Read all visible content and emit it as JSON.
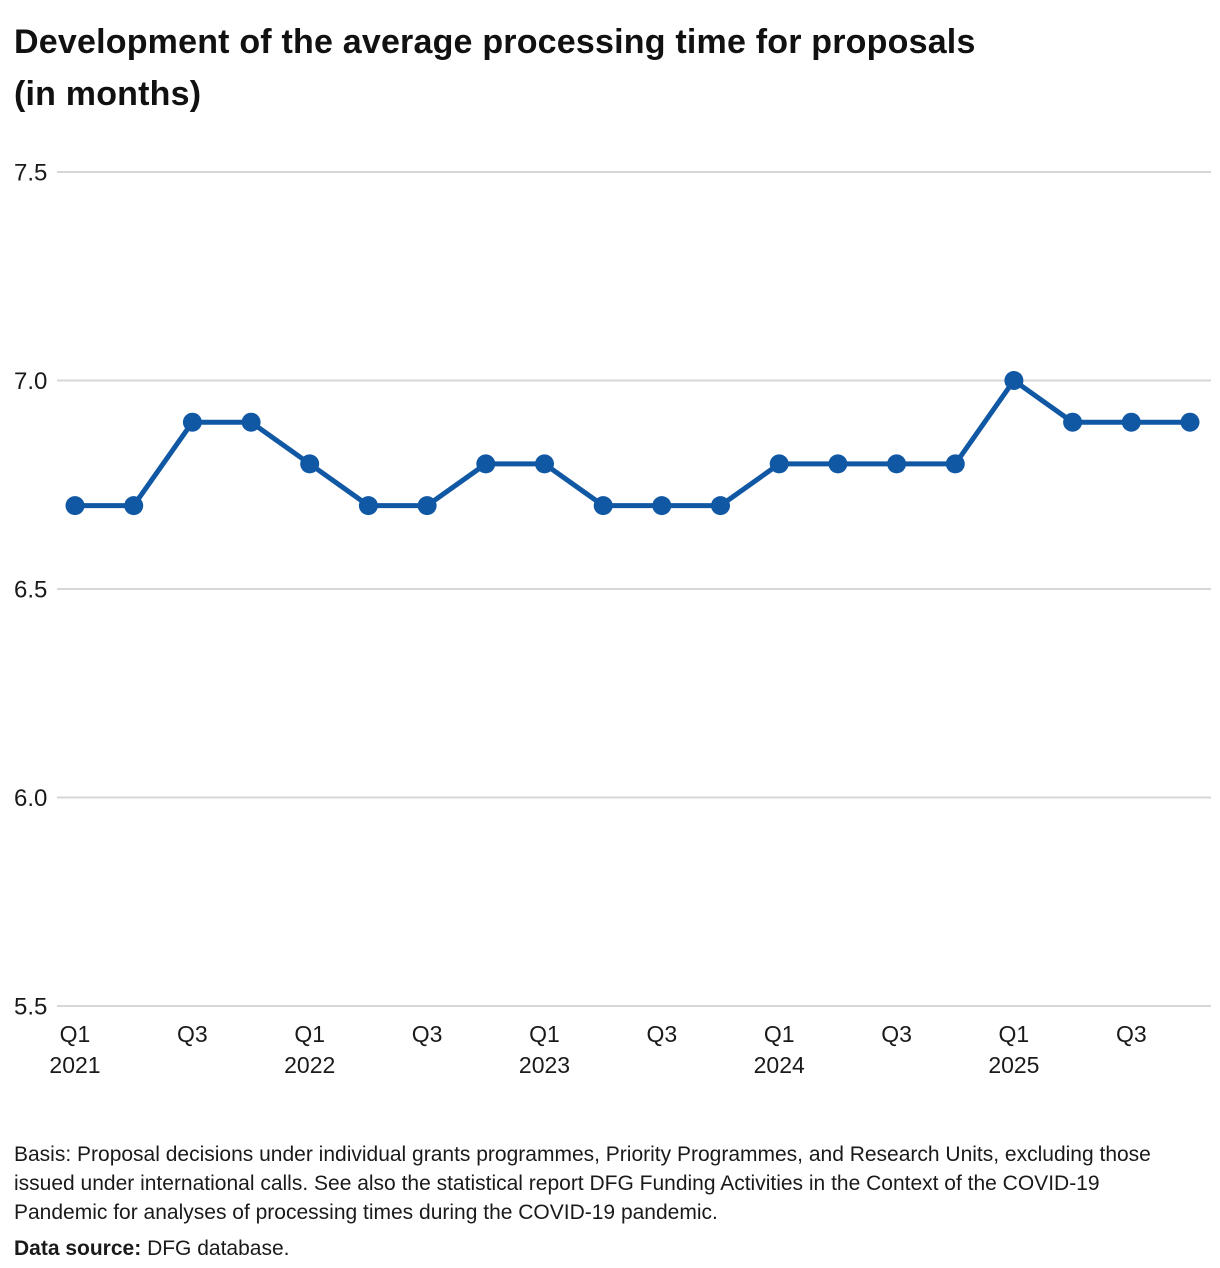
{
  "header": {
    "title_line1": "Development of the average processing time for proposals",
    "title_line2": "(in months)"
  },
  "chart_data": {
    "type": "line",
    "title": "Development of the average processing time for proposals (in months)",
    "categories": [
      "Q1 2021",
      "Q2 2021",
      "Q3 2021",
      "Q4 2021",
      "Q1 2022",
      "Q2 2022",
      "Q3 2022",
      "Q4 2022",
      "Q1 2023",
      "Q2 2023",
      "Q3 2023",
      "Q4 2023",
      "Q1 2024",
      "Q2 2024",
      "Q3 2024",
      "Q4 2024",
      "Q1 2025",
      "Q2 2025",
      "Q3 2025",
      "Q4 2025"
    ],
    "series": [
      {
        "name": "Average processing time (months)",
        "values": [
          6.7,
          6.7,
          6.9,
          6.9,
          6.8,
          6.7,
          6.7,
          6.8,
          6.8,
          6.7,
          6.7,
          6.7,
          6.8,
          6.8,
          6.8,
          6.8,
          7.0,
          6.9,
          6.9,
          6.9
        ]
      }
    ],
    "ylim": [
      5.5,
      7.5
    ],
    "yticks": [
      {
        "value": 7.5,
        "label": "7.5"
      },
      {
        "value": 7.0,
        "label": "7.0"
      },
      {
        "value": 6.5,
        "label": "6.5"
      },
      {
        "value": 6.0,
        "label": "6.0"
      },
      {
        "value": 5.5,
        "label": "5.5"
      }
    ],
    "xticks": [
      {
        "index": 0,
        "label": "Q1",
        "year": "2021"
      },
      {
        "index": 2,
        "label": "Q3",
        "year": ""
      },
      {
        "index": 4,
        "label": "Q1",
        "year": "2022"
      },
      {
        "index": 6,
        "label": "Q3",
        "year": ""
      },
      {
        "index": 8,
        "label": "Q1",
        "year": "2023"
      },
      {
        "index": 10,
        "label": "Q3",
        "year": ""
      },
      {
        "index": 12,
        "label": "Q1",
        "year": "2024"
      },
      {
        "index": 14,
        "label": "Q3",
        "year": ""
      },
      {
        "index": 16,
        "label": "Q1",
        "year": "2025"
      },
      {
        "index": 18,
        "label": "Q3",
        "year": ""
      }
    ],
    "grid": true,
    "legend": "none",
    "colors": {
      "line": "#1158a4",
      "marker": "#1158a4",
      "gridline": "#d5d7da",
      "axis_text": "#1a1a1a"
    }
  },
  "footer": {
    "basis": "Basis: Proposal decisions under individual grants programmes, Priority Programmes, and Research Units, excluding those issued under international calls. See also the statistical report DFG Funding Activities in the Context of the COVID-19 Pandemic for analyses of processing times during the COVID-19 pandemic.",
    "source_label": "Data source:",
    "source_value": "DFG database."
  }
}
